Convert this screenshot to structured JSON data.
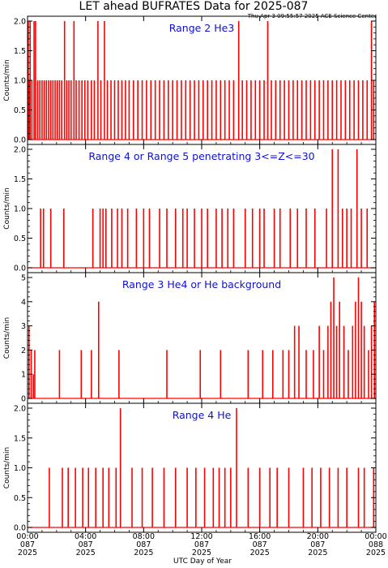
{
  "title": "LET ahead BUFRATES Data for 2025-087",
  "timestamp": "Thu Apr  3 09:55:57 2025 ACE Science Center",
  "xlabel": "UTC Day of Year",
  "colors": {
    "trace": "#ff0000",
    "panel_title": "#1010d0",
    "axis": "#000000",
    "background": "#ffffff"
  },
  "x_ticks": [
    {
      "hour": 0,
      "time": "00:00",
      "doy": "087",
      "year": "2025"
    },
    {
      "hour": 4,
      "time": "04:00",
      "doy": "087",
      "year": "2025"
    },
    {
      "hour": 8,
      "time": "08:00",
      "doy": "087",
      "year": "2025"
    },
    {
      "hour": 12,
      "time": "12:00",
      "doy": "087",
      "year": "2025"
    },
    {
      "hour": 16,
      "time": "16:00",
      "doy": "087",
      "year": "2025"
    },
    {
      "hour": 20,
      "time": "20:00",
      "doy": "087",
      "year": "2025"
    },
    {
      "hour": 24,
      "time": "00:00",
      "doy": "088",
      "year": "2025"
    }
  ],
  "chart_data": [
    {
      "type": "line",
      "title": "Range 2 He3",
      "ylabel": "Counts/min",
      "xlim": [
        0,
        24
      ],
      "ylim": [
        0,
        2
      ],
      "yticks": [
        "0.0",
        "0.5",
        "1.0",
        "1.5",
        "2.0"
      ],
      "grid": false,
      "description": "one-minute count rate; mostly 0/1 spikes, occasional 2",
      "events": [
        {
          "t": 0.05,
          "v": 2
        },
        {
          "t": 0.1,
          "v": 1
        },
        {
          "t": 0.18,
          "v": 2
        },
        {
          "t": 0.3,
          "v": 1
        },
        {
          "t": 0.45,
          "v": 2
        },
        {
          "t": 0.55,
          "v": 2
        },
        {
          "t": 0.7,
          "v": 1
        },
        {
          "t": 0.85,
          "v": 1
        },
        {
          "t": 1.0,
          "v": 1
        },
        {
          "t": 1.15,
          "v": 1
        },
        {
          "t": 1.3,
          "v": 1
        },
        {
          "t": 1.45,
          "v": 1
        },
        {
          "t": 1.6,
          "v": 1
        },
        {
          "t": 1.75,
          "v": 1
        },
        {
          "t": 1.9,
          "v": 1
        },
        {
          "t": 2.05,
          "v": 1
        },
        {
          "t": 2.2,
          "v": 1
        },
        {
          "t": 2.35,
          "v": 1
        },
        {
          "t": 2.55,
          "v": 2
        },
        {
          "t": 2.7,
          "v": 1
        },
        {
          "t": 2.85,
          "v": 1
        },
        {
          "t": 3.0,
          "v": 1
        },
        {
          "t": 3.2,
          "v": 2
        },
        {
          "t": 3.35,
          "v": 1
        },
        {
          "t": 3.55,
          "v": 1
        },
        {
          "t": 3.75,
          "v": 1
        },
        {
          "t": 3.95,
          "v": 1
        },
        {
          "t": 4.15,
          "v": 1
        },
        {
          "t": 4.4,
          "v": 1
        },
        {
          "t": 4.6,
          "v": 1
        },
        {
          "t": 4.85,
          "v": 2
        },
        {
          "t": 5.05,
          "v": 1
        },
        {
          "t": 5.3,
          "v": 2
        },
        {
          "t": 5.5,
          "v": 1
        },
        {
          "t": 5.75,
          "v": 1
        },
        {
          "t": 6.0,
          "v": 1
        },
        {
          "t": 6.25,
          "v": 1
        },
        {
          "t": 6.5,
          "v": 1
        },
        {
          "t": 6.75,
          "v": 1
        },
        {
          "t": 7.0,
          "v": 1
        },
        {
          "t": 7.3,
          "v": 1
        },
        {
          "t": 7.6,
          "v": 1
        },
        {
          "t": 7.9,
          "v": 1
        },
        {
          "t": 8.2,
          "v": 1
        },
        {
          "t": 8.5,
          "v": 1
        },
        {
          "t": 8.8,
          "v": 1
        },
        {
          "t": 9.1,
          "v": 1
        },
        {
          "t": 9.4,
          "v": 1
        },
        {
          "t": 9.7,
          "v": 1
        },
        {
          "t": 10.0,
          "v": 1
        },
        {
          "t": 10.3,
          "v": 1
        },
        {
          "t": 10.6,
          "v": 1
        },
        {
          "t": 10.9,
          "v": 1
        },
        {
          "t": 11.2,
          "v": 1
        },
        {
          "t": 11.5,
          "v": 1
        },
        {
          "t": 11.8,
          "v": 1
        },
        {
          "t": 12.1,
          "v": 1
        },
        {
          "t": 12.4,
          "v": 1
        },
        {
          "t": 12.7,
          "v": 1
        },
        {
          "t": 13.0,
          "v": 1
        },
        {
          "t": 13.3,
          "v": 1
        },
        {
          "t": 13.6,
          "v": 1
        },
        {
          "t": 13.9,
          "v": 1
        },
        {
          "t": 14.2,
          "v": 1
        },
        {
          "t": 14.55,
          "v": 2
        },
        {
          "t": 14.8,
          "v": 1
        },
        {
          "t": 15.1,
          "v": 1
        },
        {
          "t": 15.4,
          "v": 1
        },
        {
          "t": 15.7,
          "v": 1
        },
        {
          "t": 16.0,
          "v": 1
        },
        {
          "t": 16.3,
          "v": 1
        },
        {
          "t": 16.55,
          "v": 2
        },
        {
          "t": 16.8,
          "v": 1
        },
        {
          "t": 17.1,
          "v": 1
        },
        {
          "t": 17.4,
          "v": 1
        },
        {
          "t": 17.7,
          "v": 1
        },
        {
          "t": 18.0,
          "v": 1
        },
        {
          "t": 18.3,
          "v": 1
        },
        {
          "t": 18.6,
          "v": 1
        },
        {
          "t": 18.9,
          "v": 1
        },
        {
          "t": 19.2,
          "v": 1
        },
        {
          "t": 19.5,
          "v": 1
        },
        {
          "t": 19.8,
          "v": 1
        },
        {
          "t": 20.1,
          "v": 1
        },
        {
          "t": 20.4,
          "v": 1
        },
        {
          "t": 20.7,
          "v": 1
        },
        {
          "t": 21.0,
          "v": 1
        },
        {
          "t": 21.3,
          "v": 1
        },
        {
          "t": 21.6,
          "v": 1
        },
        {
          "t": 21.9,
          "v": 1
        },
        {
          "t": 22.2,
          "v": 1
        },
        {
          "t": 22.5,
          "v": 1
        },
        {
          "t": 22.8,
          "v": 1
        },
        {
          "t": 23.1,
          "v": 1
        },
        {
          "t": 23.4,
          "v": 1
        },
        {
          "t": 23.7,
          "v": 2
        },
        {
          "t": 23.85,
          "v": 1
        }
      ]
    },
    {
      "type": "line",
      "title": "Range 4 or Range 5 penetrating 3<=Z<=30",
      "ylabel": "Counts/min",
      "xlim": [
        0,
        24
      ],
      "ylim": [
        0,
        2
      ],
      "yticks": [
        "0.0",
        "0.5",
        "1.0",
        "1.5",
        "2.0"
      ],
      "grid": false,
      "events": [
        {
          "t": 0.9,
          "v": 1
        },
        {
          "t": 1.1,
          "v": 1
        },
        {
          "t": 1.6,
          "v": 1
        },
        {
          "t": 2.5,
          "v": 1
        },
        {
          "t": 4.5,
          "v": 1
        },
        {
          "t": 5.0,
          "v": 1
        },
        {
          "t": 5.2,
          "v": 1
        },
        {
          "t": 5.4,
          "v": 1
        },
        {
          "t": 5.8,
          "v": 1
        },
        {
          "t": 6.2,
          "v": 1
        },
        {
          "t": 6.5,
          "v": 1
        },
        {
          "t": 6.9,
          "v": 1
        },
        {
          "t": 7.5,
          "v": 1
        },
        {
          "t": 8.0,
          "v": 1
        },
        {
          "t": 8.4,
          "v": 1
        },
        {
          "t": 9.1,
          "v": 1
        },
        {
          "t": 9.6,
          "v": 1
        },
        {
          "t": 10.2,
          "v": 1
        },
        {
          "t": 10.7,
          "v": 1
        },
        {
          "t": 11.0,
          "v": 1
        },
        {
          "t": 11.5,
          "v": 1
        },
        {
          "t": 12.0,
          "v": 1
        },
        {
          "t": 12.4,
          "v": 1
        },
        {
          "t": 13.0,
          "v": 1
        },
        {
          "t": 13.4,
          "v": 1
        },
        {
          "t": 13.8,
          "v": 1
        },
        {
          "t": 14.2,
          "v": 1
        },
        {
          "t": 15.0,
          "v": 1
        },
        {
          "t": 15.5,
          "v": 1
        },
        {
          "t": 16.0,
          "v": 1
        },
        {
          "t": 16.3,
          "v": 1
        },
        {
          "t": 17.0,
          "v": 1
        },
        {
          "t": 17.4,
          "v": 1
        },
        {
          "t": 18.1,
          "v": 1
        },
        {
          "t": 18.6,
          "v": 1
        },
        {
          "t": 19.2,
          "v": 1
        },
        {
          "t": 19.8,
          "v": 1
        },
        {
          "t": 20.6,
          "v": 1
        },
        {
          "t": 21.0,
          "v": 2
        },
        {
          "t": 21.4,
          "v": 2
        },
        {
          "t": 21.7,
          "v": 1
        },
        {
          "t": 22.0,
          "v": 1
        },
        {
          "t": 22.3,
          "v": 1
        },
        {
          "t": 22.7,
          "v": 2
        },
        {
          "t": 23.0,
          "v": 1
        },
        {
          "t": 23.4,
          "v": 1
        }
      ]
    },
    {
      "type": "line",
      "title": "Range 3 He4 or He background",
      "ylabel": "Counts/min",
      "xlim": [
        0,
        24
      ],
      "ylim": [
        0,
        5
      ],
      "yticks": [
        "0",
        "1",
        "2",
        "3",
        "4",
        "5"
      ],
      "grid": false,
      "description": "dense 0/1 baseline with higher spikes, activity increasing after 20:00",
      "events": [
        {
          "t": 0.1,
          "v": 3
        },
        {
          "t": 0.25,
          "v": 2
        },
        {
          "t": 0.4,
          "v": 1
        },
        {
          "t": 0.5,
          "v": 2
        },
        {
          "t": 2.2,
          "v": 2
        },
        {
          "t": 3.7,
          "v": 2
        },
        {
          "t": 4.4,
          "v": 2
        },
        {
          "t": 4.9,
          "v": 4
        },
        {
          "t": 6.3,
          "v": 2
        },
        {
          "t": 9.6,
          "v": 2
        },
        {
          "t": 11.9,
          "v": 2
        },
        {
          "t": 13.3,
          "v": 2
        },
        {
          "t": 15.2,
          "v": 2
        },
        {
          "t": 16.2,
          "v": 2
        },
        {
          "t": 16.9,
          "v": 2
        },
        {
          "t": 17.6,
          "v": 2
        },
        {
          "t": 18.0,
          "v": 2
        },
        {
          "t": 18.4,
          "v": 3
        },
        {
          "t": 18.7,
          "v": 3
        },
        {
          "t": 19.2,
          "v": 2
        },
        {
          "t": 19.7,
          "v": 2
        },
        {
          "t": 20.1,
          "v": 3
        },
        {
          "t": 20.4,
          "v": 2
        },
        {
          "t": 20.7,
          "v": 3
        },
        {
          "t": 20.9,
          "v": 4
        },
        {
          "t": 21.1,
          "v": 5
        },
        {
          "t": 21.3,
          "v": 3
        },
        {
          "t": 21.5,
          "v": 4
        },
        {
          "t": 21.8,
          "v": 3
        },
        {
          "t": 22.1,
          "v": 2
        },
        {
          "t": 22.4,
          "v": 3
        },
        {
          "t": 22.6,
          "v": 4
        },
        {
          "t": 22.8,
          "v": 5
        },
        {
          "t": 23.0,
          "v": 4
        },
        {
          "t": 23.2,
          "v": 3
        },
        {
          "t": 23.5,
          "v": 2
        },
        {
          "t": 23.7,
          "v": 3
        },
        {
          "t": 23.9,
          "v": 4
        }
      ]
    },
    {
      "type": "line",
      "title": "Range 4 He",
      "ylabel": "Counts/min",
      "xlim": [
        0,
        24
      ],
      "ylim": [
        0,
        2
      ],
      "yticks": [
        "0.0",
        "0.5",
        "1.0",
        "1.5",
        "2.0"
      ],
      "grid": false,
      "events": [
        {
          "t": 1.5,
          "v": 1
        },
        {
          "t": 2.4,
          "v": 1
        },
        {
          "t": 2.8,
          "v": 1
        },
        {
          "t": 3.3,
          "v": 1
        },
        {
          "t": 3.8,
          "v": 1
        },
        {
          "t": 4.2,
          "v": 1
        },
        {
          "t": 4.7,
          "v": 1
        },
        {
          "t": 5.2,
          "v": 1
        },
        {
          "t": 5.6,
          "v": 1
        },
        {
          "t": 6.1,
          "v": 1
        },
        {
          "t": 6.4,
          "v": 2
        },
        {
          "t": 7.2,
          "v": 1
        },
        {
          "t": 7.9,
          "v": 1
        },
        {
          "t": 8.6,
          "v": 1
        },
        {
          "t": 9.4,
          "v": 1
        },
        {
          "t": 10.2,
          "v": 1
        },
        {
          "t": 11.0,
          "v": 1
        },
        {
          "t": 11.6,
          "v": 1
        },
        {
          "t": 12.2,
          "v": 1
        },
        {
          "t": 12.8,
          "v": 1
        },
        {
          "t": 13.2,
          "v": 1
        },
        {
          "t": 13.6,
          "v": 1
        },
        {
          "t": 14.0,
          "v": 1
        },
        {
          "t": 14.4,
          "v": 2
        },
        {
          "t": 15.2,
          "v": 1
        },
        {
          "t": 16.0,
          "v": 1
        },
        {
          "t": 16.7,
          "v": 1
        },
        {
          "t": 17.2,
          "v": 1
        },
        {
          "t": 18.0,
          "v": 1
        },
        {
          "t": 19.0,
          "v": 1
        },
        {
          "t": 19.6,
          "v": 1
        },
        {
          "t": 20.2,
          "v": 1
        },
        {
          "t": 20.8,
          "v": 1
        },
        {
          "t": 21.4,
          "v": 1
        },
        {
          "t": 22.0,
          "v": 1
        },
        {
          "t": 22.8,
          "v": 1
        },
        {
          "t": 23.2,
          "v": 1
        },
        {
          "t": 23.85,
          "v": 1
        }
      ]
    }
  ]
}
